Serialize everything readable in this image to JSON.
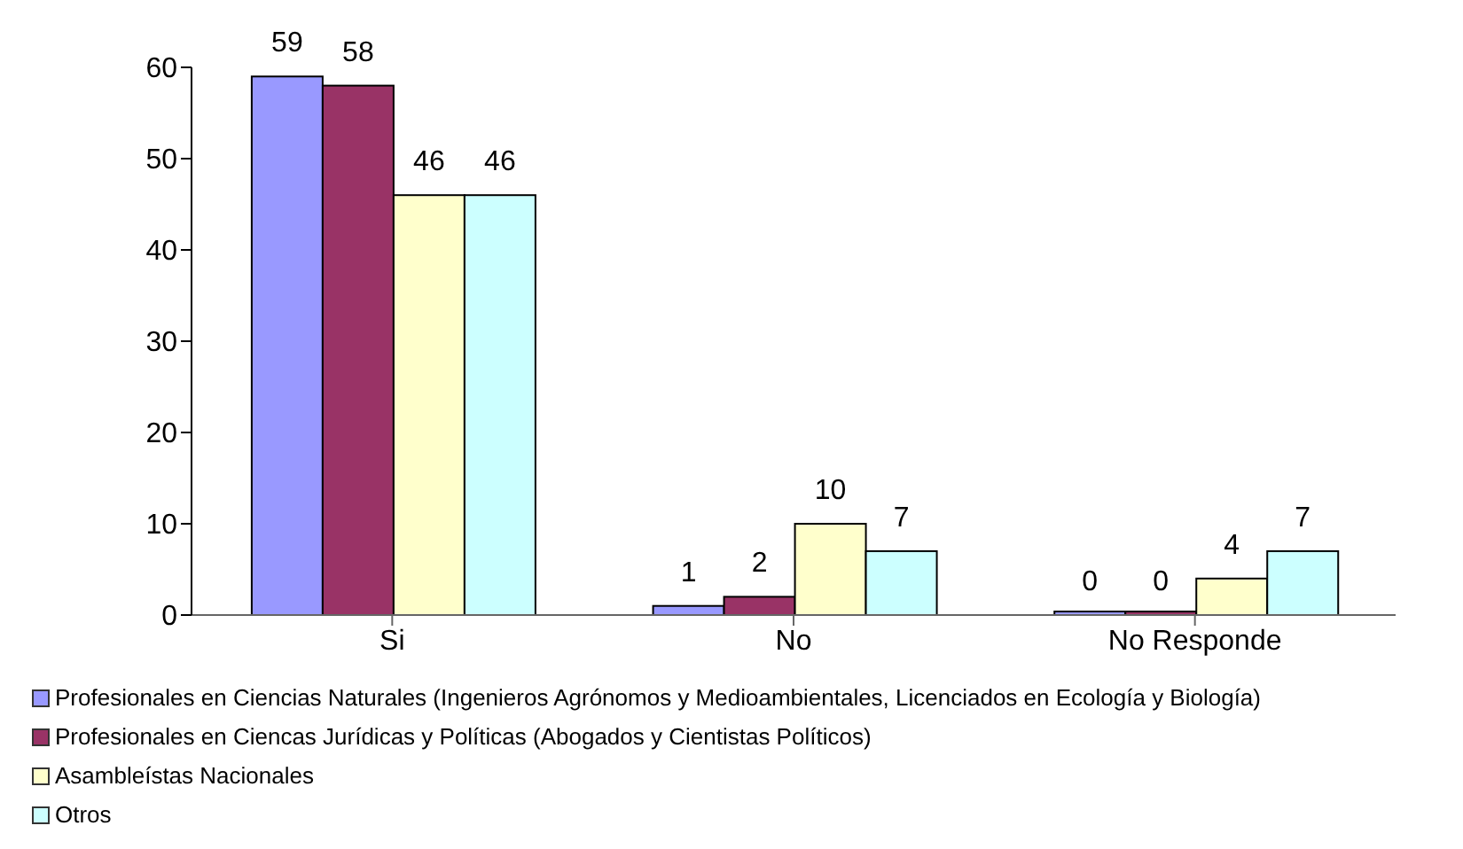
{
  "chart_data": {
    "type": "bar",
    "categories": [
      "Si",
      "No",
      "No Responde"
    ],
    "series": [
      {
        "name": "Profesionales en Ciencias Naturales (Ingenieros Agrónomos y Medioambientales, Licenciados en Ecología y Biología)",
        "color": "#9999ff",
        "values": [
          59,
          1,
          0
        ]
      },
      {
        "name": "Profesionales en Ciencas Jurídicas y Políticas (Abogados y Cientistas Políticos)",
        "color": "#993366",
        "values": [
          58,
          2,
          0
        ]
      },
      {
        "name": "Asambleístas Nacionales",
        "color": "#ffffcc",
        "values": [
          46,
          10,
          4
        ]
      },
      {
        "name": "Otros",
        "color": "#ccffff",
        "values": [
          46,
          7,
          7
        ]
      }
    ],
    "ylim": [
      0,
      60
    ],
    "yticks": [
      0,
      10,
      20,
      30,
      40,
      50,
      60
    ],
    "data_labels": true,
    "legend": "bottom left"
  }
}
